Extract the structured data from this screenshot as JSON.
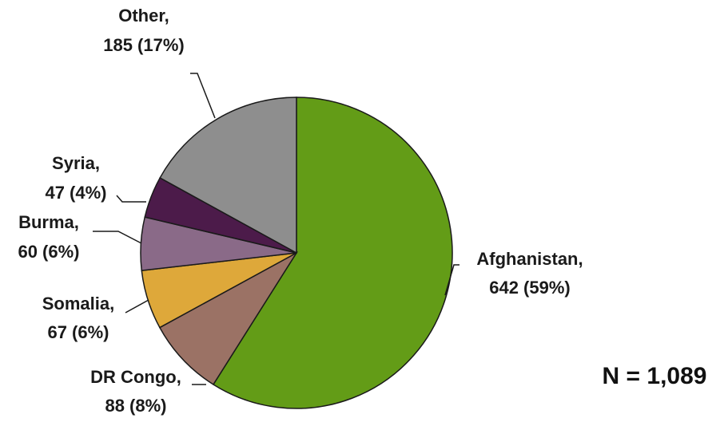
{
  "chart_data": {
    "type": "pie",
    "total_label": "N = 1,089",
    "slices": [
      {
        "name": "Afghanistan",
        "value": 642,
        "pct_label": "642 (59%)",
        "color": "#639c17"
      },
      {
        "name": "DR Congo",
        "value": 88,
        "pct_label": "88 (8%)",
        "color": "#9b7265"
      },
      {
        "name": "Somalia",
        "value": 67,
        "pct_label": "67 (6%)",
        "color": "#dea83a"
      },
      {
        "name": "Burma",
        "value": 60,
        "pct_label": "60 (6%)",
        "color": "#8a6a88"
      },
      {
        "name": "Syria",
        "value": 47,
        "pct_label": "47 (4%)",
        "color": "#4c1b4a"
      },
      {
        "name": "Other",
        "value": 185,
        "pct_label": "185 (17%)",
        "color": "#8e8e8e"
      }
    ]
  }
}
